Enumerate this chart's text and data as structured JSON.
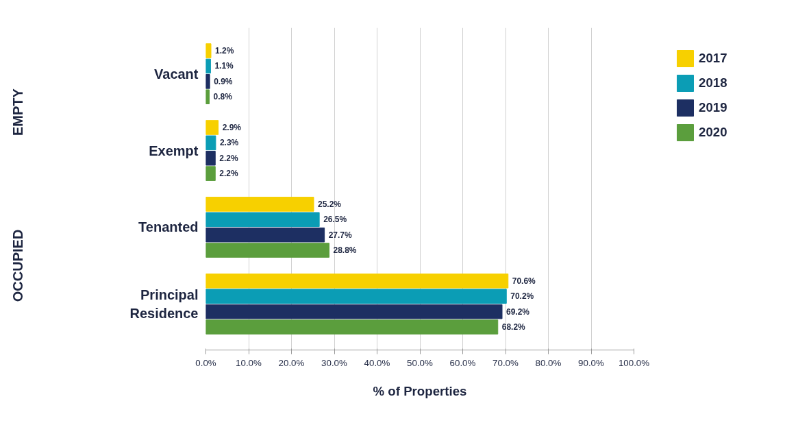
{
  "chart_data": {
    "type": "bar",
    "orientation": "horizontal",
    "xlabel": "% of Properties",
    "categories": [
      "Vacant",
      "Exempt",
      "Tenanted",
      "Principal Residence"
    ],
    "series": [
      {
        "name": "2017",
        "color": "#f7d000",
        "values": [
          1.2,
          2.9,
          25.2,
          70.6
        ],
        "value_labels": [
          "1.2%",
          "2.9%",
          "25.2%",
          "70.6%"
        ]
      },
      {
        "name": "2018",
        "color": "#0b9db5",
        "values": [
          1.1,
          2.3,
          26.5,
          70.2
        ],
        "value_labels": [
          "1.1%",
          "2.3%",
          "26.5%",
          "70.2%"
        ]
      },
      {
        "name": "2019",
        "color": "#1d2f62",
        "values": [
          0.9,
          2.2,
          27.7,
          69.2
        ],
        "value_labels": [
          "0.9%",
          "2.2%",
          "27.7%",
          "69.2%"
        ]
      },
      {
        "name": "2020",
        "color": "#5b9e3d",
        "values": [
          0.8,
          2.2,
          28.8,
          68.2
        ],
        "value_labels": [
          "0.8%",
          "2.2%",
          "28.8%",
          "68.2%"
        ]
      }
    ],
    "xlim": [
      0,
      100
    ],
    "xticks": [
      {
        "value": 0,
        "label": "0.0%"
      },
      {
        "value": 10,
        "label": "10.0%"
      },
      {
        "value": 20,
        "label": "20.0%"
      },
      {
        "value": 30,
        "label": "30.0%"
      },
      {
        "value": 40,
        "label": "40.0%"
      },
      {
        "value": 50,
        "label": "50.0%"
      },
      {
        "value": 60,
        "label": "60.0%"
      },
      {
        "value": 70,
        "label": "70.0%"
      },
      {
        "value": 80,
        "label": "80.0%"
      },
      {
        "value": 90,
        "label": "90.0%"
      },
      {
        "value": 100,
        "label": "100.0%"
      }
    ],
    "annotations": [
      "EMPTY",
      "OCCUPIED"
    ],
    "grid": "x",
    "legend": "right"
  }
}
